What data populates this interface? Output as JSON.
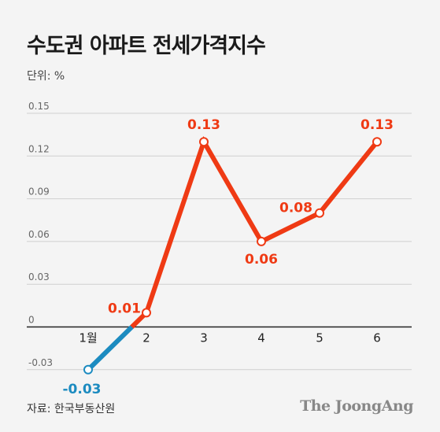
{
  "title": "수도권 아파트 전세가격지수",
  "unit": "단위: %",
  "source": "자료: 한국부동산원",
  "brand": "The JoongAng",
  "colors": {
    "positive": "#ef3a14",
    "negative": "#1c8bc0",
    "grid": "#cfcfcf",
    "zero_axis": "#222222"
  },
  "chart_data": {
    "type": "line",
    "title": "수도권 아파트 전세가격지수",
    "ylabel": "단위: %",
    "categories": [
      "1월",
      "2",
      "3",
      "4",
      "5",
      "6"
    ],
    "values": [
      -0.03,
      0.01,
      0.13,
      0.06,
      0.08,
      0.13
    ],
    "value_labels": [
      "-0.03",
      "0.01",
      "0.13",
      "0.06",
      "0.08",
      "0.13"
    ],
    "yticks": [
      "0.15",
      "0.12",
      "0.09",
      "0.06",
      "0.03",
      "0",
      "-0.03"
    ],
    "ylim": [
      -0.03,
      0.15
    ],
    "grid": true,
    "legend": "none"
  }
}
